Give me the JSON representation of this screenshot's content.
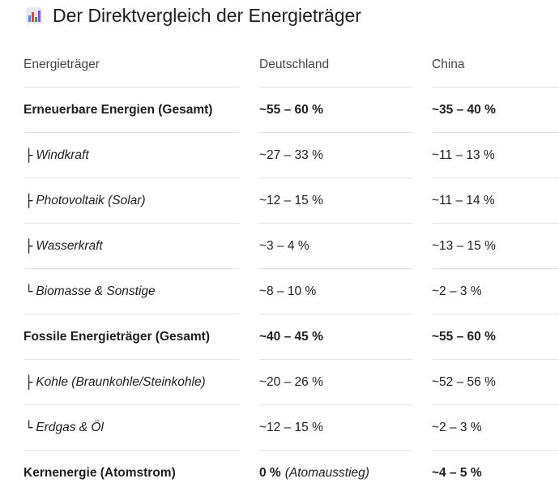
{
  "heading": {
    "icon": "bar-chart-icon",
    "title": "Der Direktvergleich der Energieträger"
  },
  "table": {
    "columns": [
      "Energieträger",
      "Deutschland",
      "China"
    ],
    "rows": [
      {
        "label": "Erneuerbare Energien (Gesamt)",
        "prefix": "",
        "de": "~55 – 60 %",
        "de_note": "",
        "cn": "~35 – 40 %",
        "style": "bold"
      },
      {
        "label": "Windkraft",
        "prefix": "├",
        "de": "~27 – 33 %",
        "de_note": "",
        "cn": "~11 – 13 %",
        "style": "sub"
      },
      {
        "label": "Photovoltaik (Solar)",
        "prefix": "├",
        "de": "~12 – 15 %",
        "de_note": "",
        "cn": "~11 – 14 %",
        "style": "sub"
      },
      {
        "label": "Wasserkraft",
        "prefix": "├",
        "de": "~3 – 4 %",
        "de_note": "",
        "cn": "~13 – 15 %",
        "style": "sub"
      },
      {
        "label": "Biomasse & Sonstige",
        "prefix": "└",
        "de": "~8 – 10 %",
        "de_note": "",
        "cn": "~2 – 3 %",
        "style": "sub"
      },
      {
        "label": "Fossile Energieträger (Gesamt)",
        "prefix": "",
        "de": "~40 – 45 %",
        "de_note": "",
        "cn": "~55 – 60 %",
        "style": "bold"
      },
      {
        "label": "Kohle (Braunkohle/Steinkohle)",
        "prefix": "├",
        "de": "~20 – 26 %",
        "de_note": "",
        "cn": "~52 – 56 %",
        "style": "sub"
      },
      {
        "label": "Erdgas & Öl",
        "prefix": "└",
        "de": "~12 – 15 %",
        "de_note": "",
        "cn": "~2 – 3 %",
        "style": "sub"
      },
      {
        "label": "Kernenergie (Atomstrom)",
        "prefix": "",
        "de": "0 %",
        "de_note": "(Atomausstieg)",
        "cn": "~4 – 5 %",
        "style": "bold"
      }
    ]
  },
  "colors": {
    "icon_bars": [
      "#4285f4",
      "#ea4335",
      "#34a853",
      "#a142f4"
    ],
    "icon_frame": "#e8eaed",
    "rule": "#e3e3e3",
    "text": "#1f1f1f"
  }
}
